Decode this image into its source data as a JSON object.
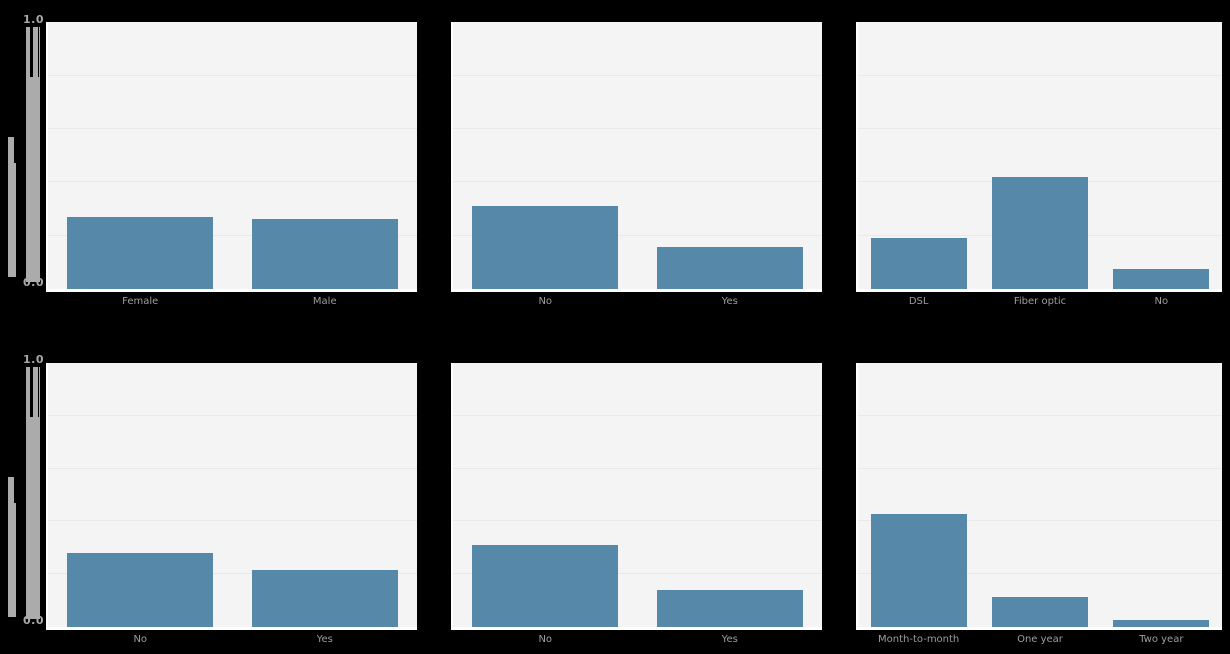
{
  "figure": {
    "background_color": "#000000",
    "plot_background_color": "#f4f4f4",
    "grid_color": "#e9e9e9",
    "bar_color": "#5688a9",
    "spine_color": "#ffffff",
    "tick_label_color": "#9e9e9e",
    "axis_artifact_color": "#ababab"
  },
  "y_axis": {
    "top_tick_label": "1.0",
    "bottom_tick_label": "0.0"
  },
  "chart_data": [
    {
      "type": "bar",
      "grid_pos": {
        "row": 0,
        "col": 0
      },
      "categories": [
        "Female",
        "Male"
      ],
      "values": [
        0.27,
        0.26
      ],
      "title": "",
      "xlabel": "",
      "ylabel": "",
      "ylim": [
        0,
        1
      ],
      "ytick_interval": 0.2,
      "grid": true,
      "legend": false
    },
    {
      "type": "bar",
      "grid_pos": {
        "row": 0,
        "col": 1
      },
      "categories": [
        "No",
        "Yes"
      ],
      "values": [
        0.31,
        0.155
      ],
      "title": "",
      "xlabel": "",
      "ylabel": "",
      "ylim": [
        0,
        1
      ],
      "ytick_interval": 0.2,
      "grid": true,
      "legend": false
    },
    {
      "type": "bar",
      "grid_pos": {
        "row": 0,
        "col": 2
      },
      "categories": [
        "DSL",
        "Fiber optic",
        "No"
      ],
      "values": [
        0.19,
        0.42,
        0.075
      ],
      "title": "",
      "xlabel": "",
      "ylabel": "",
      "ylim": [
        0,
        1
      ],
      "ytick_interval": 0.2,
      "grid": true,
      "legend": false
    },
    {
      "type": "bar",
      "grid_pos": {
        "row": 1,
        "col": 0
      },
      "categories": [
        "No",
        "Yes"
      ],
      "values": [
        0.28,
        0.215
      ],
      "title": "",
      "xlabel": "",
      "ylabel": "",
      "ylim": [
        0,
        1
      ],
      "ytick_interval": 0.2,
      "grid": true,
      "legend": false
    },
    {
      "type": "bar",
      "grid_pos": {
        "row": 1,
        "col": 1
      },
      "categories": [
        "No",
        "Yes"
      ],
      "values": [
        0.31,
        0.14
      ],
      "title": "",
      "xlabel": "",
      "ylabel": "",
      "ylim": [
        0,
        1
      ],
      "ytick_interval": 0.2,
      "grid": true,
      "legend": false
    },
    {
      "type": "bar",
      "grid_pos": {
        "row": 1,
        "col": 2
      },
      "categories": [
        "Month-to-month",
        "One year",
        "Two year"
      ],
      "values": [
        0.425,
        0.11,
        0.025
      ],
      "title": "",
      "xlabel": "",
      "ylabel": "",
      "ylim": [
        0,
        1
      ],
      "ytick_interval": 0.2,
      "grid": true,
      "legend": false
    }
  ]
}
